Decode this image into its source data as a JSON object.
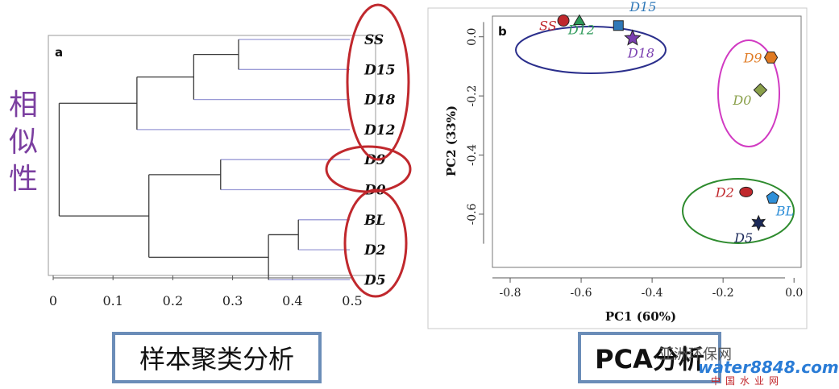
{
  "side_label": "相似性",
  "captions": {
    "left": "样本聚类分析",
    "right": "PCA分析"
  },
  "watermark": {
    "top": "亚洲环保网",
    "mid": "water8848.com",
    "bottom": "中国水业网"
  },
  "colors": {
    "dendro_line": "#3a3a3a",
    "dendro_tip": "#9a9ad6",
    "highlight_red": "#c0282d",
    "pca_blue_ellipse": "#2b2f8c",
    "pca_magenta_ellipse": "#d13ac2",
    "pca_green_ellipse": "#2e8b2e"
  },
  "chart_data": [
    {
      "type": "dendrogram",
      "panel_label": "a",
      "leaves": [
        "SS",
        "D15",
        "D18",
        "D12",
        "D9",
        "D0",
        "BL",
        "D2",
        "D5"
      ],
      "merges": [
        {
          "a": "SS",
          "b": "D15",
          "height": 0.31
        },
        {
          "a": "SS+D15",
          "b": "D18",
          "height": 0.235
        },
        {
          "a": "SS+D15+D18",
          "b": "D12",
          "height": 0.14
        },
        {
          "a": "D9",
          "b": "D0",
          "height": 0.28
        },
        {
          "a": "BL",
          "b": "D2",
          "height": 0.41
        },
        {
          "a": "BL+D2",
          "b": "D5",
          "height": 0.36
        },
        {
          "a": "D9+D0",
          "b": "BL+D2+D5",
          "height": 0.16
        },
        {
          "a": "top",
          "b": "bottom",
          "height": 0.01
        }
      ],
      "x_ticks": [
        "0",
        "0.1",
        "0.2",
        "0.3",
        "0.4",
        "0.5"
      ],
      "xlim": [
        0,
        0.5
      ],
      "highlight_groups": [
        [
          "SS",
          "D15",
          "D18",
          "D12"
        ],
        [
          "D9",
          "D0"
        ],
        [
          "BL",
          "D2",
          "D5"
        ]
      ]
    },
    {
      "type": "scatter",
      "panel_label": "b",
      "xlabel": "PC1 (60%)",
      "ylabel": "PC2 (33%)",
      "xlim": [
        -0.85,
        0.02
      ],
      "ylim": [
        -0.78,
        0.07
      ],
      "x_ticks": [
        "-0.8",
        "-0.6",
        "-0.4",
        "-0.2",
        "0.0"
      ],
      "y_ticks": [
        "0.0",
        "-0.2",
        "-0.4",
        "-0.6"
      ],
      "points": [
        {
          "label": "SS",
          "x": -0.65,
          "y": 0.055,
          "marker": "circle",
          "color": "#c0282d"
        },
        {
          "label": "D12",
          "x": -0.605,
          "y": 0.052,
          "marker": "triangle",
          "color": "#2e9a5a"
        },
        {
          "label": "D15",
          "x": -0.495,
          "y": 0.038,
          "marker": "square",
          "color": "#2f78b8"
        },
        {
          "label": "D18",
          "x": -0.455,
          "y": -0.005,
          "marker": "star",
          "color": "#7a3fb0"
        },
        {
          "label": "D9",
          "x": -0.065,
          "y": -0.07,
          "marker": "hexagon",
          "color": "#e07a22"
        },
        {
          "label": "D0",
          "x": -0.095,
          "y": -0.18,
          "marker": "diamond",
          "color": "#8aa04a"
        },
        {
          "label": "D2",
          "x": -0.135,
          "y": -0.525,
          "marker": "ellipse",
          "color": "#c0282d"
        },
        {
          "label": "BL",
          "x": -0.06,
          "y": -0.545,
          "marker": "pentagon",
          "color": "#2f8fd8"
        },
        {
          "label": "D5",
          "x": -0.1,
          "y": -0.63,
          "marker": "star6",
          "color": "#1c2a5a"
        }
      ]
    }
  ]
}
